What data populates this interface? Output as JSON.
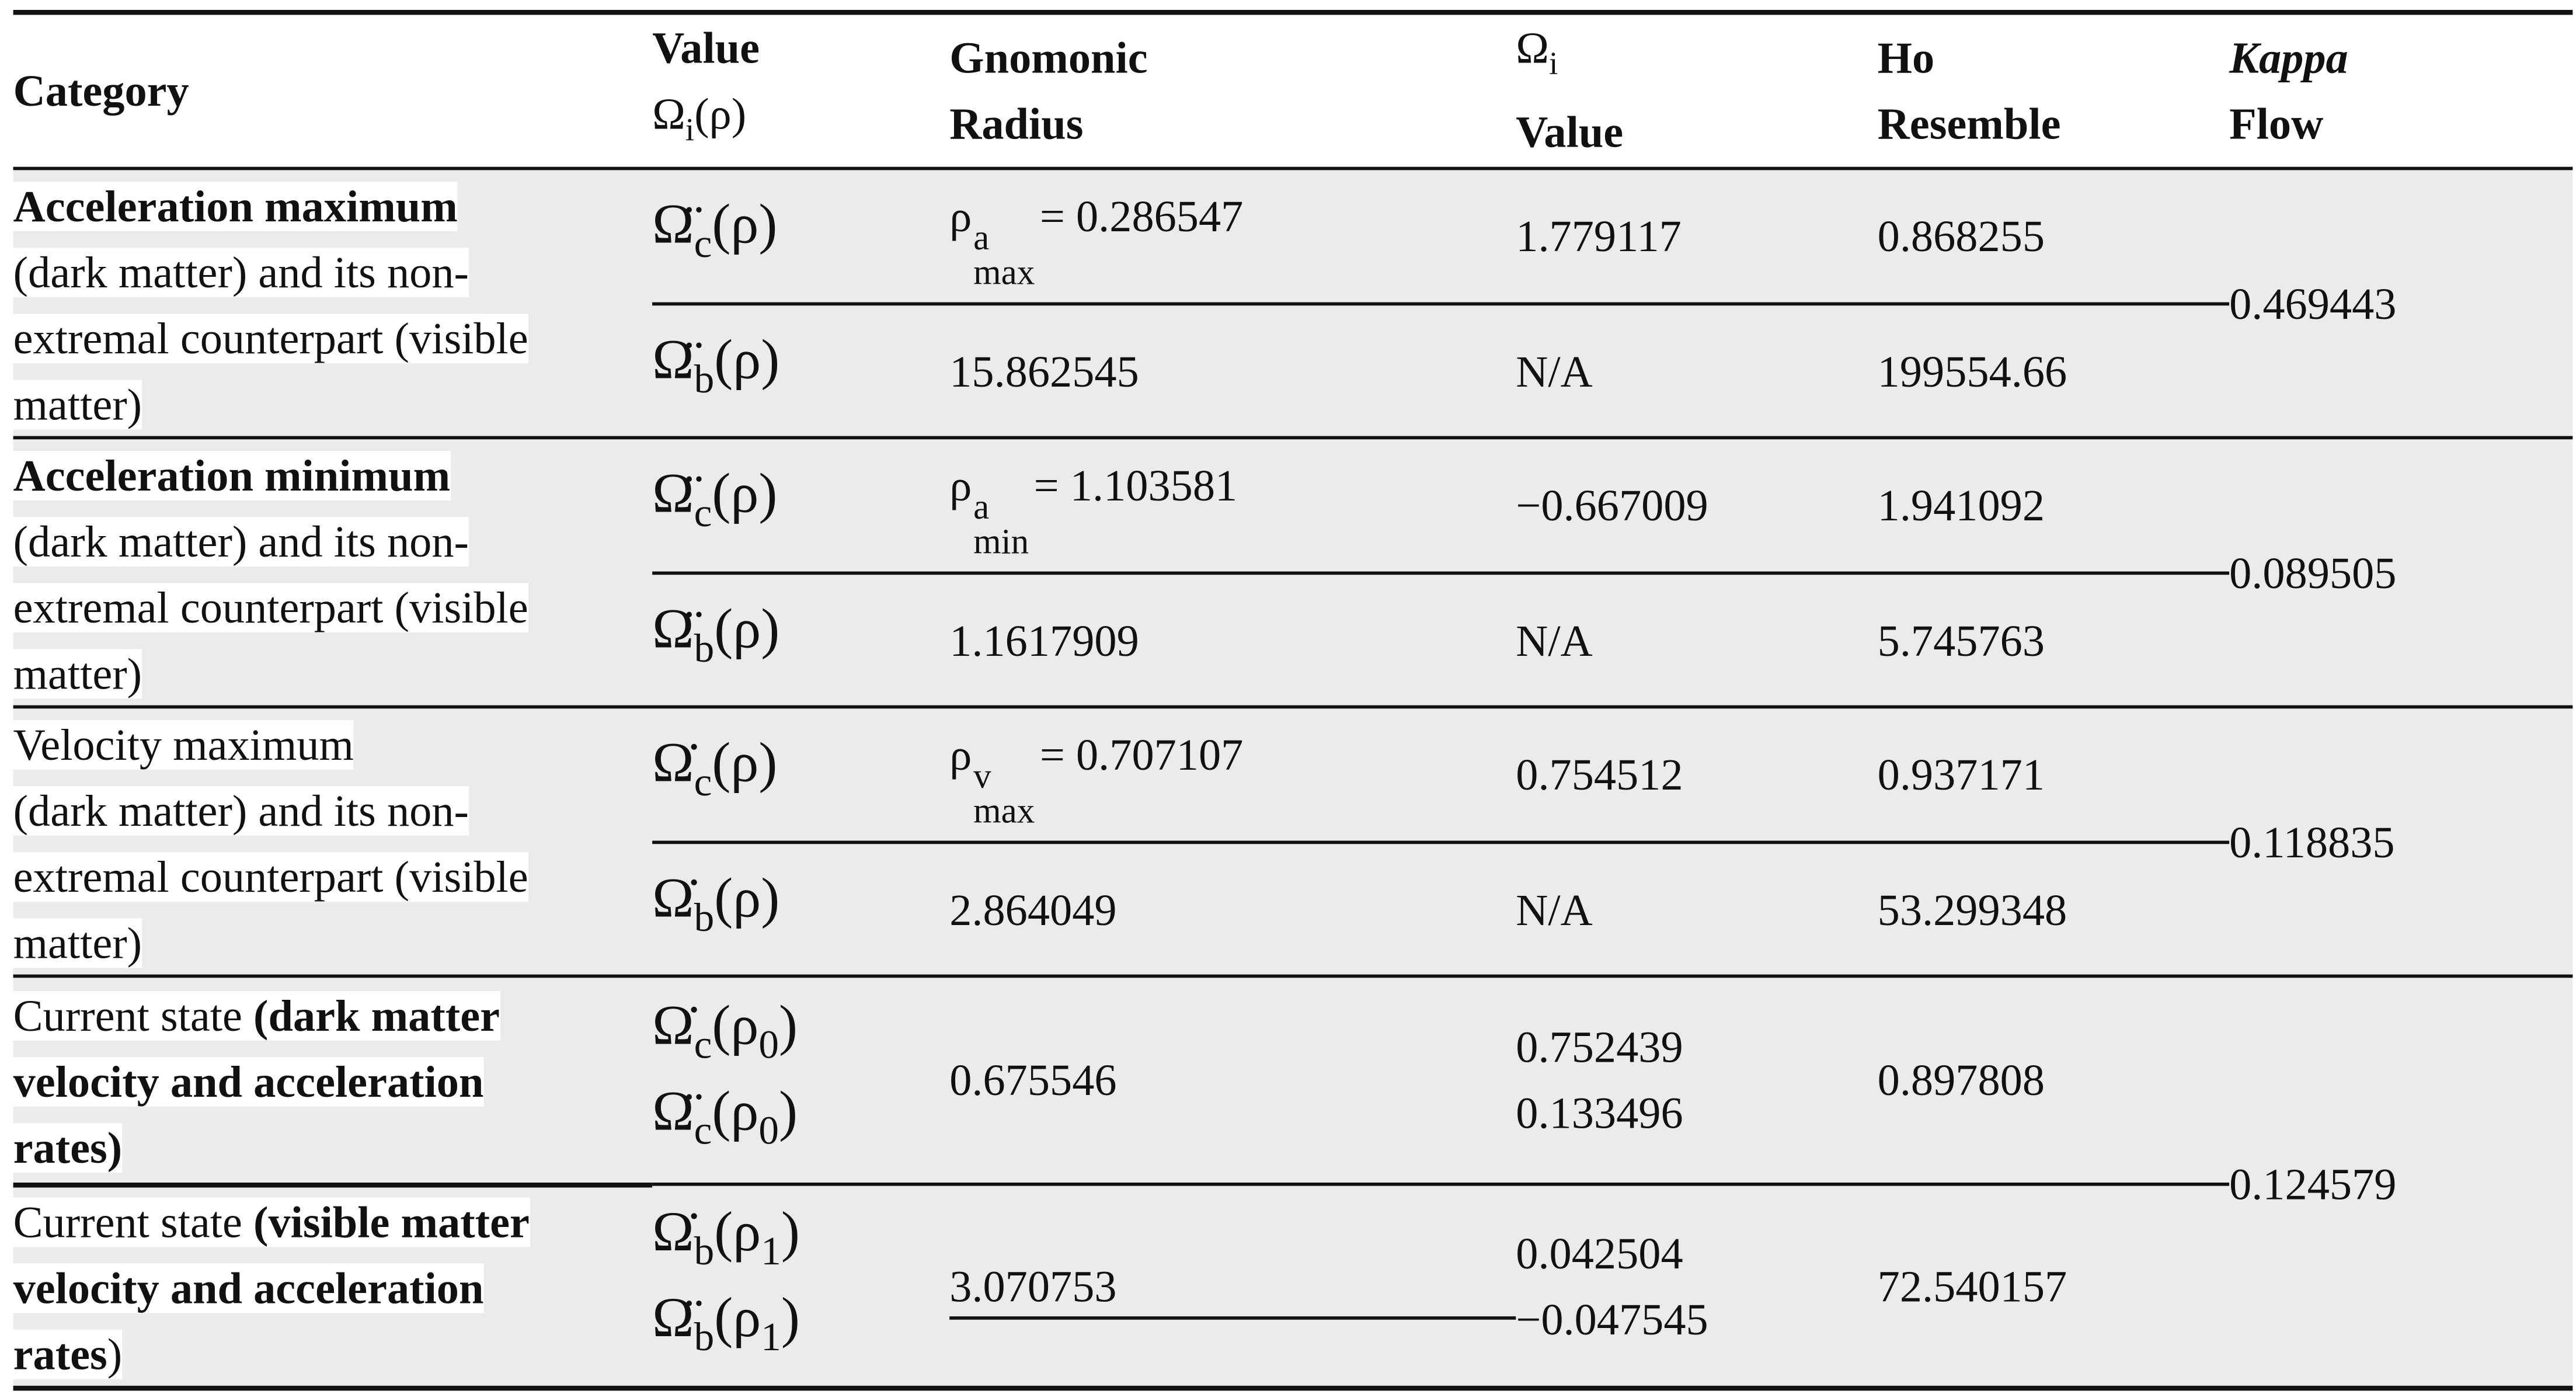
{
  "table": {
    "header": [
      [
        [
          {
            "text": "Category",
            "bold": true
          }
        ]
      ],
      [
        [
          {
            "text": "Value",
            "bold": true
          }
        ],
        [
          {
            "text": "Ω"
          },
          {
            "text": "i",
            "sub": true
          },
          {
            "text": "(ρ)"
          }
        ]
      ],
      [
        [
          {
            "text": "Gnomonic",
            "bold": true
          }
        ],
        [
          {
            "text": "Radius",
            "bold": true
          }
        ]
      ],
      [
        [
          {
            "text": "Ω"
          },
          {
            "text": "i",
            "sub": true
          }
        ],
        [
          {
            "text": "Value",
            "bold": true
          }
        ]
      ],
      [
        [
          {
            "text": "Ho",
            "bold": true
          }
        ],
        [
          {
            "text": "Resemble",
            "bold": true
          }
        ]
      ],
      [
        [
          {
            "text": "Kappa",
            "bold": true,
            "italic": true
          }
        ],
        [
          {
            "text": "Flow",
            "bold": true
          }
        ]
      ]
    ],
    "categories": [
      [
        [
          {
            "text": "Acceleration maximum",
            "bold": true
          }
        ],
        [
          {
            "text": "(dark matter) and its non-"
          }
        ],
        [
          {
            "text": "extremal counterpart (visible"
          }
        ],
        [
          {
            "text": "matter)"
          }
        ]
      ],
      [
        [
          {
            "text": "Acceleration minimum",
            "bold": true
          }
        ],
        [
          {
            "text": "(dark matter) and its non-"
          }
        ],
        [
          {
            "text": "extremal counterpart (visible"
          }
        ],
        [
          {
            "text": "matter)"
          }
        ]
      ],
      [
        [
          {
            "text": "Velocity maximum"
          }
        ],
        [
          {
            "text": "(dark matter) and its non-"
          }
        ],
        [
          {
            "text": "extremal counterpart (visible"
          }
        ],
        [
          {
            "text": "matter)"
          }
        ]
      ],
      [
        [
          {
            "text": "Current state "
          },
          {
            "text": "(dark matter",
            "bold": true
          }
        ],
        [
          {
            "text": "velocity and acceleration",
            "bold": true
          }
        ],
        [
          {
            "text": "rates)",
            "bold": true
          }
        ]
      ],
      [
        [
          {
            "text": "Current state "
          },
          {
            "text": "(visible matter",
            "bold": true
          }
        ],
        [
          {
            "text": "velocity and acceleration",
            "bold": true
          }
        ],
        [
          {
            "text": "rates",
            "bold": true
          },
          {
            "text": ")"
          }
        ]
      ]
    ],
    "rows": [
      {
        "symbol": [
          [
            {
              "text": "Ω̈"
            },
            {
              "text": "c",
              "sub": true
            },
            {
              "text": "(ρ)"
            }
          ]
        ],
        "radius": [
          [
            {
              "text": "ρ"
            },
            {
              "sup": "a",
              "sub": "max"
            },
            {
              "text": "= 0.286547"
            }
          ]
        ],
        "omega": [
          [
            {
              "text": "1.779117"
            }
          ]
        ],
        "resemble": [
          [
            {
              "text": "0.868255"
            }
          ]
        ]
      },
      {
        "symbol": [
          [
            {
              "text": "Ω̈"
            },
            {
              "text": "b",
              "sub": true
            },
            {
              "text": "(ρ)"
            }
          ]
        ],
        "radius": [
          [
            {
              "text": "15.862545"
            }
          ]
        ],
        "omega": [
          [
            {
              "text": "N/A"
            }
          ]
        ],
        "resemble": [
          [
            {
              "text": "199554.66"
            }
          ]
        ]
      },
      {
        "symbol": [
          [
            {
              "text": "Ω̈"
            },
            {
              "text": "c",
              "sub": true
            },
            {
              "text": "(ρ)"
            }
          ]
        ],
        "radius": [
          [
            {
              "text": "ρ"
            },
            {
              "sup": "a",
              "sub": "min"
            },
            {
              "text": "= 1.103581"
            }
          ]
        ],
        "omega": [
          [
            {
              "text": "−0.667009"
            }
          ]
        ],
        "resemble": [
          [
            {
              "text": "1.941092"
            }
          ]
        ]
      },
      {
        "symbol": [
          [
            {
              "text": "Ω̈"
            },
            {
              "text": "b",
              "sub": true
            },
            {
              "text": "(ρ)"
            }
          ]
        ],
        "radius": [
          [
            {
              "text": "1.1617909"
            }
          ]
        ],
        "omega": [
          [
            {
              "text": "N/A"
            }
          ]
        ],
        "resemble": [
          [
            {
              "text": "5.745763"
            }
          ]
        ]
      },
      {
        "symbol": [
          [
            {
              "text": "Ω̇"
            },
            {
              "text": "c",
              "sub": true
            },
            {
              "text": "(ρ)"
            }
          ]
        ],
        "radius": [
          [
            {
              "text": "ρ"
            },
            {
              "sup": "v",
              "sub": "max"
            },
            {
              "text": "= 0.707107"
            }
          ]
        ],
        "omega": [
          [
            {
              "text": "0.754512"
            }
          ]
        ],
        "resemble": [
          [
            {
              "text": "0.937171"
            }
          ]
        ]
      },
      {
        "symbol": [
          [
            {
              "text": "Ω̇"
            },
            {
              "text": "b",
              "sub": true
            },
            {
              "text": "(ρ)"
            }
          ]
        ],
        "radius": [
          [
            {
              "text": "2.864049"
            }
          ]
        ],
        "omega": [
          [
            {
              "text": "N/A"
            }
          ]
        ],
        "resemble": [
          [
            {
              "text": "53.299348"
            }
          ]
        ]
      },
      {
        "symbol": [
          [
            {
              "text": "Ω̇"
            },
            {
              "text": "c",
              "sub": true
            },
            {
              "text": "(ρ"
            },
            {
              "text": "0",
              "sub": true
            },
            {
              "text": ")"
            }
          ],
          [
            {
              "text": "Ω̈"
            },
            {
              "text": "c",
              "sub": true
            },
            {
              "text": "(ρ"
            },
            {
              "text": "0",
              "sub": true
            },
            {
              "text": ")"
            }
          ]
        ],
        "radius": [
          [
            {
              "text": "0.675546"
            }
          ]
        ],
        "omega": [
          [
            {
              "text": "0.752439"
            }
          ],
          [
            {
              "text": "0.133496"
            }
          ]
        ],
        "resemble": [
          [
            {
              "text": "0.897808"
            }
          ]
        ]
      },
      {
        "symbol": [
          [
            {
              "text": "Ω̇"
            },
            {
              "text": "b",
              "sub": true
            },
            {
              "text": "(ρ"
            },
            {
              "text": "1",
              "sub": true
            },
            {
              "text": ")"
            }
          ],
          [
            {
              "text": "Ω̈"
            },
            {
              "text": "b",
              "sub": true
            },
            {
              "text": "(ρ"
            },
            {
              "text": "1",
              "sub": true
            },
            {
              "text": ")"
            }
          ]
        ],
        "radius": [
          [
            {
              "text": "3.070753"
            }
          ]
        ],
        "omega": [
          [
            {
              "text": "0.042504"
            }
          ],
          [
            {
              "text": "−0.047545"
            }
          ]
        ],
        "resemble": [
          [
            {
              "text": "72.540157"
            }
          ]
        ]
      }
    ],
    "kappa_flow": [
      "0.469443",
      "0.089505",
      "0.118835",
      "0.124579"
    ]
  }
}
